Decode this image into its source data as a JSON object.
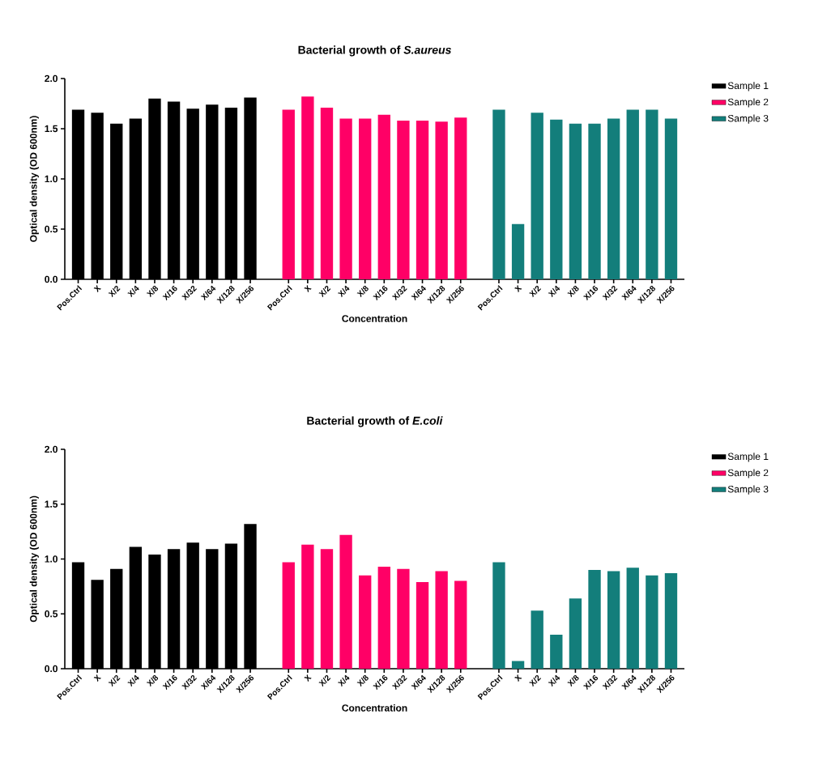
{
  "chart_data": [
    {
      "type": "bar",
      "title": "Bacterial growth of *S.aureus*",
      "xlabel": "Concentration",
      "ylabel": "Optical density (OD 600nm)",
      "categories": [
        "Pos.Ctrl",
        "X",
        "X/2",
        "X/4",
        "X/8",
        "X/16",
        "X/32",
        "X/64",
        "X/128",
        "X/256",
        null,
        "Pos.Ctrl",
        "X",
        "X/2",
        "X/4",
        "X/8",
        "X/16",
        "X/32",
        "X/64",
        "X/128",
        "X/256",
        null,
        "Pos.Ctrl",
        "X",
        "X/2",
        "X/4",
        "X/8",
        "X/16",
        "X/32",
        "X/64",
        "X/128",
        "X/256"
      ],
      "series": [
        {
          "name": "Sample 1",
          "color": "#000000",
          "values": [
            1.69,
            1.66,
            1.55,
            1.6,
            1.8,
            1.77,
            1.7,
            1.74,
            1.71,
            1.81,
            null,
            null,
            null,
            null,
            null,
            null,
            null,
            null,
            null,
            null,
            null,
            null,
            null,
            null,
            null,
            null,
            null,
            null,
            null,
            null,
            null,
            null
          ]
        },
        {
          "name": "Sample 2",
          "color": "#ff0066",
          "values": [
            null,
            null,
            null,
            null,
            null,
            null,
            null,
            null,
            null,
            null,
            null,
            1.69,
            1.82,
            1.71,
            1.6,
            1.6,
            1.64,
            1.58,
            1.58,
            1.57,
            1.61,
            null,
            null,
            null,
            null,
            null,
            null,
            null,
            null,
            null,
            null,
            null
          ]
        },
        {
          "name": "Sample 3",
          "color": "#137e7b",
          "values": [
            null,
            null,
            null,
            null,
            null,
            null,
            null,
            null,
            null,
            null,
            null,
            null,
            null,
            null,
            null,
            null,
            null,
            null,
            null,
            null,
            null,
            null,
            1.69,
            0.55,
            1.66,
            1.59,
            1.55,
            1.55,
            1.6,
            1.69,
            1.69,
            1.6
          ]
        }
      ],
      "ylim": [
        0,
        2
      ],
      "yticks": [
        {
          "value": 0,
          "label": "0.0"
        },
        {
          "value": 0.5,
          "label": "0.5"
        },
        {
          "value": 1,
          "label": "1.0"
        },
        {
          "value": 1.5,
          "label": "1.5"
        },
        {
          "value": 2,
          "label": "2.0"
        }
      ],
      "grid": false,
      "legend": "right"
    },
    {
      "type": "bar",
      "title": "Bacterial growth of *E.coli*",
      "xlabel": "Concentration",
      "ylabel": "Optical density (OD 600nm)",
      "categories": [
        "Pos.Ctrl",
        "X",
        "X/2",
        "X/4",
        "X/8",
        "X/16",
        "X/32",
        "X/64",
        "X/128",
        "X/256",
        null,
        "Pos.Ctrl",
        "X",
        "X/2",
        "X/4",
        "X/8",
        "X/16",
        "X/32",
        "X/64",
        "X/128",
        "X/256",
        null,
        "Pos.Ctrl",
        "X",
        "X/2",
        "X/4",
        "X/8",
        "X/16",
        "X/32",
        "X/64",
        "X/128",
        "X/256"
      ],
      "series": [
        {
          "name": "Sample 1",
          "color": "#000000",
          "values": [
            0.97,
            0.81,
            0.91,
            1.11,
            1.04,
            1.09,
            1.15,
            1.09,
            1.14,
            1.32,
            null,
            null,
            null,
            null,
            null,
            null,
            null,
            null,
            null,
            null,
            null,
            null,
            null,
            null,
            null,
            null,
            null,
            null,
            null,
            null,
            null,
            null
          ]
        },
        {
          "name": "Sample 2",
          "color": "#ff0066",
          "values": [
            null,
            null,
            null,
            null,
            null,
            null,
            null,
            null,
            null,
            null,
            null,
            0.97,
            1.13,
            1.09,
            1.22,
            0.85,
            0.93,
            0.91,
            0.79,
            0.89,
            0.8,
            null,
            null,
            null,
            null,
            null,
            null,
            null,
            null,
            null,
            null,
            null
          ]
        },
        {
          "name": "Sample 3",
          "color": "#137e7b",
          "values": [
            null,
            null,
            null,
            null,
            null,
            null,
            null,
            null,
            null,
            null,
            null,
            null,
            null,
            null,
            null,
            null,
            null,
            null,
            null,
            null,
            null,
            null,
            0.97,
            0.07,
            0.53,
            0.31,
            0.64,
            0.9,
            0.89,
            0.92,
            0.85,
            0.87
          ]
        }
      ],
      "ylim": [
        0,
        2
      ],
      "yticks": [
        {
          "value": 0,
          "label": "0.0"
        },
        {
          "value": 0.5,
          "label": "0.5"
        },
        {
          "value": 1,
          "label": "1.0"
        },
        {
          "value": 1.5,
          "label": "1.5"
        },
        {
          "value": 2,
          "label": "2.0"
        }
      ],
      "grid": false,
      "legend": "right"
    }
  ]
}
